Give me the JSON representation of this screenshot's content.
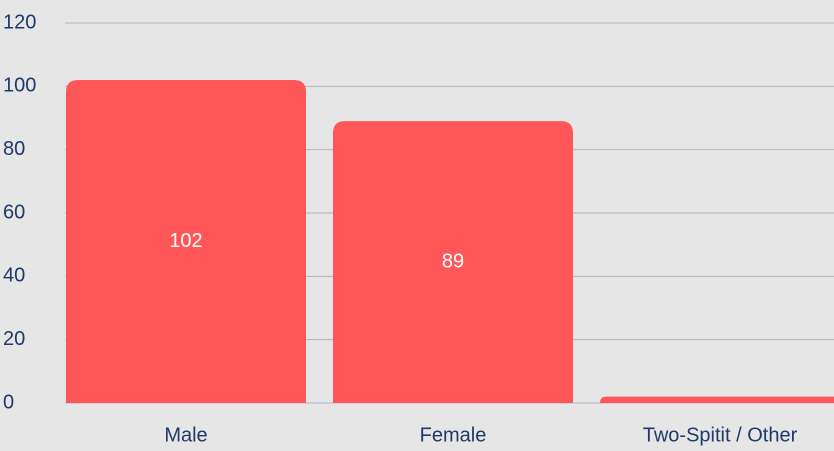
{
  "chart_data": {
    "type": "bar",
    "categories": [
      "Male",
      "Female",
      "Two-Spitit / Other"
    ],
    "values": [
      102,
      89,
      2
    ],
    "color": "#ff5757",
    "ylim": [
      0,
      120
    ],
    "yticks": [
      0,
      20,
      40,
      60,
      80,
      100,
      120
    ],
    "grid": true
  }
}
